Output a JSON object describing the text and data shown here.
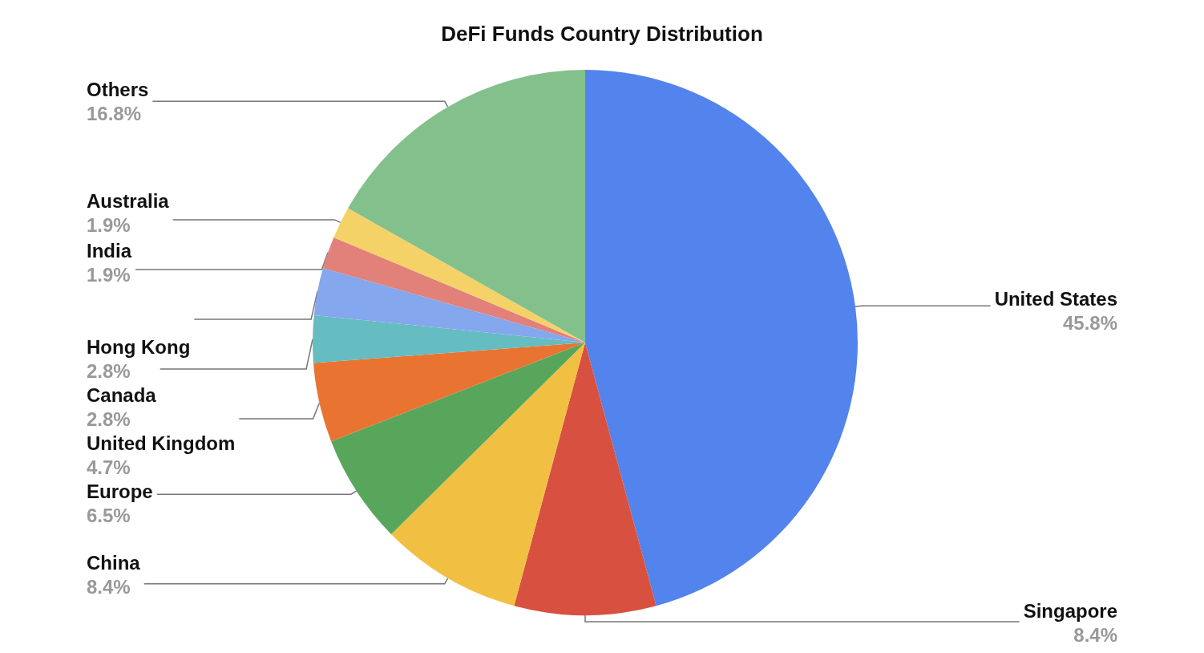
{
  "chart_data": {
    "type": "pie",
    "title": "DeFi Funds Country Distribution",
    "categories": [
      "United States",
      "Singapore",
      "China",
      "Europe",
      "United Kingdom",
      "Canada",
      "Hong Kong",
      "India",
      "Australia",
      "Others"
    ],
    "values": [
      45.8,
      8.4,
      8.4,
      6.5,
      4.7,
      2.8,
      2.8,
      1.9,
      1.9,
      16.8
    ],
    "value_labels": [
      "45.8%",
      "8.4%",
      "8.4%",
      "6.5%",
      "4.7%",
      "2.8%",
      "2.8%",
      "1.9%",
      "1.9%",
      "16.8%"
    ],
    "colors": [
      "#5383ec",
      "#d85140",
      "#f1bf42",
      "#58a65c",
      "#e97431",
      "#65bcc1",
      "#84a7ee",
      "#e1817a",
      "#f5d268",
      "#84c08b"
    ],
    "legend": false
  }
}
